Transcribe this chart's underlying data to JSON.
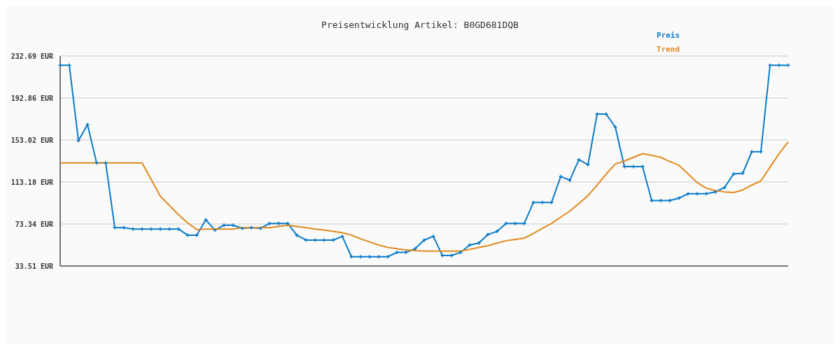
{
  "chart_data": {
    "type": "line",
    "title": "Preisentwicklung Artikel: B0GD681DQB",
    "categories": [
      null,
      null,
      null,
      null,
      null,
      null,
      null,
      null,
      null,
      null,
      null,
      null,
      null,
      null,
      null,
      null,
      null,
      null,
      null,
      null,
      null,
      null,
      null,
      null,
      null,
      null,
      null,
      null,
      null,
      null,
      null,
      null,
      null,
      null,
      null,
      null,
      null,
      null,
      null,
      null,
      null,
      null,
      null,
      null,
      null,
      null,
      null,
      null,
      null,
      null,
      null,
      null,
      null,
      null,
      null,
      null,
      null,
      null,
      null,
      null,
      null,
      null,
      null,
      null,
      null,
      null,
      null,
      null,
      null,
      null,
      null,
      null,
      null,
      null,
      null,
      null,
      null,
      null,
      null,
      null,
      null
    ],
    "series": [
      {
        "name": "Preis",
        "color": "#0a7bc8",
        "marker": "cross",
        "values": [
          223.9,
          223.9,
          152.4,
          167.7,
          131.3,
          131.3,
          69.8,
          69.8,
          68.6,
          68.6,
          68.6,
          68.6,
          68.6,
          68.6,
          62.8,
          62.8,
          77.4,
          67.5,
          72.2,
          72.2,
          69.2,
          69.8,
          69.2,
          73.9,
          73.9,
          73.9,
          62.8,
          58.1,
          58.1,
          58.1,
          58.1,
          61.6,
          42.3,
          42.3,
          42.3,
          42.3,
          42.3,
          46.4,
          46.4,
          49.9,
          58.1,
          61.6,
          43.5,
          43.5,
          46.4,
          53.4,
          55.2,
          63.4,
          66.3,
          73.9,
          73.9,
          73.9,
          93.8,
          93.8,
          93.8,
          118.4,
          114.9,
          134.3,
          129.6,
          177.6,
          177.6,
          165.3,
          127.8,
          127.8,
          127.8,
          95.6,
          95.6,
          95.6,
          97.9,
          102.0,
          102.0,
          102.0,
          103.8,
          107.9,
          120.8,
          121.4,
          141.9,
          141.9,
          223.9,
          223.9,
          223.9
        ]
      },
      {
        "name": "Trend",
        "color": "#e08a1e",
        "marker": "none",
        "values": [
          131.3,
          131.3,
          131.3,
          131.3,
          131.3,
          131.3,
          131.3,
          131.3,
          131.3,
          131.3,
          115.5,
          99.7,
          90.9,
          82.1,
          74.5,
          68.1,
          68.6,
          68.6,
          68.6,
          68.6,
          69.8,
          69.8,
          69.8,
          69.8,
          71.0,
          72.2,
          71.0,
          69.8,
          68.6,
          67.5,
          66.3,
          65.1,
          62.8,
          59.3,
          56.3,
          53.4,
          51.1,
          49.9,
          48.7,
          48.1,
          47.6,
          47.6,
          47.6,
          47.6,
          47.6,
          49.3,
          51.1,
          52.8,
          55.2,
          57.5,
          58.7,
          59.9,
          64.5,
          69.2,
          73.9,
          79.8,
          85.6,
          92.7,
          100.3,
          110.2,
          120.8,
          130.2,
          133.1,
          136.6,
          140.1,
          138.4,
          136.6,
          132.5,
          129.0,
          120.8,
          112.6,
          107.3,
          105.0,
          103.8,
          103.2,
          105.6,
          110.2,
          114.3,
          127.2,
          140.1,
          151.2
        ]
      }
    ],
    "ylim": [
      33.51,
      232.69
    ],
    "yticks": [
      {
        "value": 33.51,
        "label": "33.51 EUR"
      },
      {
        "value": 73.34,
        "label": "73.34 EUR"
      },
      {
        "value": 113.18,
        "label": "113.18 EUR"
      },
      {
        "value": 153.02,
        "label": "153.02 EUR"
      },
      {
        "value": 192.86,
        "label": "192.86 EUR"
      },
      {
        "value": 232.69,
        "label": "232.69 EUR"
      }
    ],
    "grid": "y",
    "legend": "top right",
    "tick_labels": "y",
    "line_style": "solid"
  }
}
